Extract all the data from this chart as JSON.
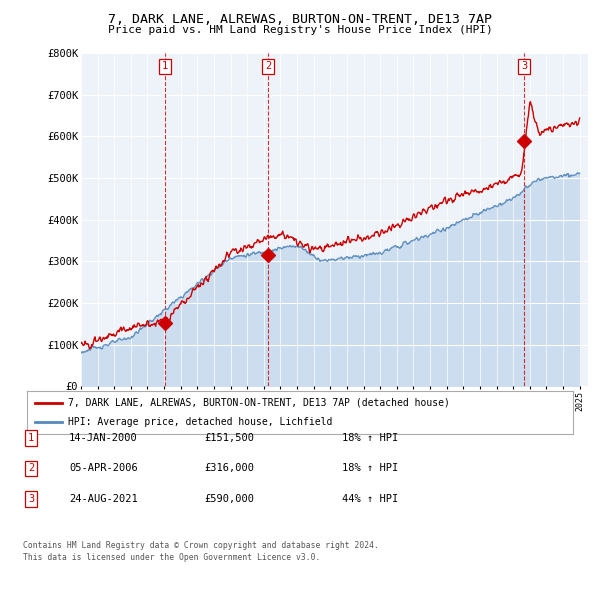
{
  "title1": "7, DARK LANE, ALREWAS, BURTON-ON-TRENT, DE13 7AP",
  "title2": "Price paid vs. HM Land Registry's House Price Index (HPI)",
  "legend_red": "7, DARK LANE, ALREWAS, BURTON-ON-TRENT, DE13 7AP (detached house)",
  "legend_blue": "HPI: Average price, detached house, Lichfield",
  "transactions": [
    {
      "num": 1,
      "date": "14-JAN-2000",
      "price": "£151,500",
      "pct": "18% ↑ HPI"
    },
    {
      "num": 2,
      "date": "05-APR-2006",
      "price": "£316,000",
      "pct": "18% ↑ HPI"
    },
    {
      "num": 3,
      "date": "24-AUG-2021",
      "price": "£590,000",
      "pct": "44% ↑ HPI"
    }
  ],
  "footnote1": "Contains HM Land Registry data © Crown copyright and database right 2024.",
  "footnote2": "This data is licensed under the Open Government Licence v3.0.",
  "ylim": [
    0,
    800000
  ],
  "yticks": [
    0,
    100000,
    200000,
    300000,
    400000,
    500000,
    600000,
    700000,
    800000
  ],
  "ytick_labels": [
    "£0",
    "£100K",
    "£200K",
    "£300K",
    "£400K",
    "£500K",
    "£600K",
    "£700K",
    "£800K"
  ],
  "plot_bg": "#eef3fa",
  "red_color": "#cc0000",
  "blue_color": "#5588bb",
  "blue_fill": "#ccddf0",
  "sale1_year": 2000.04,
  "sale1_price": 151500,
  "sale2_year": 2006.26,
  "sale2_price": 316000,
  "sale3_year": 2021.65,
  "sale3_price": 590000,
  "xmin": 1995.0,
  "xmax": 2025.5
}
